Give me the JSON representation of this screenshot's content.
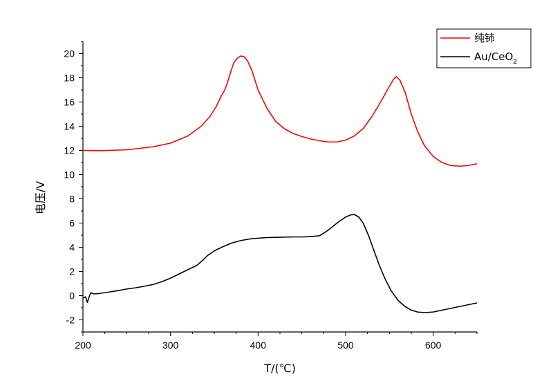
{
  "chart_data": {
    "type": "line",
    "title": "",
    "xlabel": "T/(℃)",
    "ylabel": "电压/V",
    "xlim": [
      200,
      650
    ],
    "ylim": [
      -3,
      21
    ],
    "x_ticks": [
      200,
      300,
      400,
      500,
      600
    ],
    "y_ticks": [
      -2,
      0,
      2,
      4,
      6,
      8,
      10,
      12,
      14,
      16,
      18,
      20
    ],
    "grid": false,
    "legend_position": "top-right",
    "series": [
      {
        "name": "纯铈",
        "color": "#ff0000",
        "points": [
          [
            200,
            12.0
          ],
          [
            220,
            11.98
          ],
          [
            250,
            12.05
          ],
          [
            280,
            12.3
          ],
          [
            300,
            12.6
          ],
          [
            320,
            13.2
          ],
          [
            335,
            14.0
          ],
          [
            345,
            14.8
          ],
          [
            352,
            15.6
          ],
          [
            358,
            16.5
          ],
          [
            362,
            17.0
          ],
          [
            365,
            17.6
          ],
          [
            368,
            18.3
          ],
          [
            372,
            19.2
          ],
          [
            376,
            19.6
          ],
          [
            380,
            19.8
          ],
          [
            384,
            19.75
          ],
          [
            388,
            19.4
          ],
          [
            393,
            18.6
          ],
          [
            400,
            17.0
          ],
          [
            410,
            15.5
          ],
          [
            420,
            14.4
          ],
          [
            430,
            13.8
          ],
          [
            440,
            13.4
          ],
          [
            450,
            13.15
          ],
          [
            460,
            12.95
          ],
          [
            470,
            12.8
          ],
          [
            480,
            12.7
          ],
          [
            490,
            12.7
          ],
          [
            500,
            12.85
          ],
          [
            510,
            13.2
          ],
          [
            520,
            13.8
          ],
          [
            530,
            14.8
          ],
          [
            540,
            16.0
          ],
          [
            550,
            17.3
          ],
          [
            555,
            17.9
          ],
          [
            558,
            18.1
          ],
          [
            562,
            17.8
          ],
          [
            568,
            16.8
          ],
          [
            575,
            15.0
          ],
          [
            582,
            13.6
          ],
          [
            590,
            12.4
          ],
          [
            600,
            11.5
          ],
          [
            610,
            11.0
          ],
          [
            620,
            10.75
          ],
          [
            630,
            10.7
          ],
          [
            640,
            10.75
          ],
          [
            650,
            10.9
          ]
        ]
      },
      {
        "name": "Au/CeO2",
        "color": "#000000",
        "points": [
          [
            200,
            -0.2
          ],
          [
            203,
            -0.1
          ],
          [
            205,
            -0.55
          ],
          [
            207,
            -0.1
          ],
          [
            209,
            0.25
          ],
          [
            212,
            0.15
          ],
          [
            216,
            0.15
          ],
          [
            220,
            0.2
          ],
          [
            230,
            0.3
          ],
          [
            240,
            0.42
          ],
          [
            250,
            0.55
          ],
          [
            260,
            0.65
          ],
          [
            270,
            0.78
          ],
          [
            280,
            0.92
          ],
          [
            290,
            1.15
          ],
          [
            300,
            1.45
          ],
          [
            310,
            1.8
          ],
          [
            320,
            2.15
          ],
          [
            330,
            2.5
          ],
          [
            338,
            3.0
          ],
          [
            342,
            3.3
          ],
          [
            350,
            3.7
          ],
          [
            360,
            4.05
          ],
          [
            370,
            4.35
          ],
          [
            380,
            4.55
          ],
          [
            390,
            4.68
          ],
          [
            400,
            4.75
          ],
          [
            410,
            4.8
          ],
          [
            420,
            4.82
          ],
          [
            430,
            4.84
          ],
          [
            440,
            4.85
          ],
          [
            450,
            4.85
          ],
          [
            460,
            4.88
          ],
          [
            470,
            4.95
          ],
          [
            478,
            5.3
          ],
          [
            485,
            5.7
          ],
          [
            492,
            6.1
          ],
          [
            500,
            6.5
          ],
          [
            506,
            6.68
          ],
          [
            510,
            6.7
          ],
          [
            515,
            6.5
          ],
          [
            520,
            6.0
          ],
          [
            526,
            5.0
          ],
          [
            532,
            3.8
          ],
          [
            538,
            2.6
          ],
          [
            545,
            1.4
          ],
          [
            552,
            0.4
          ],
          [
            560,
            -0.4
          ],
          [
            568,
            -0.9
          ],
          [
            575,
            -1.2
          ],
          [
            582,
            -1.35
          ],
          [
            590,
            -1.4
          ],
          [
            600,
            -1.35
          ],
          [
            610,
            -1.2
          ],
          [
            620,
            -1.05
          ],
          [
            630,
            -0.9
          ],
          [
            640,
            -0.75
          ],
          [
            650,
            -0.6
          ]
        ]
      }
    ]
  },
  "legend": {
    "items": [
      {
        "name": "纯铈",
        "color": "#ff0000",
        "main": "纯铈",
        "sub": ""
      },
      {
        "name": "Au/CeO2",
        "color": "#000000",
        "main": "Au/CeO",
        "sub": "2"
      }
    ]
  }
}
